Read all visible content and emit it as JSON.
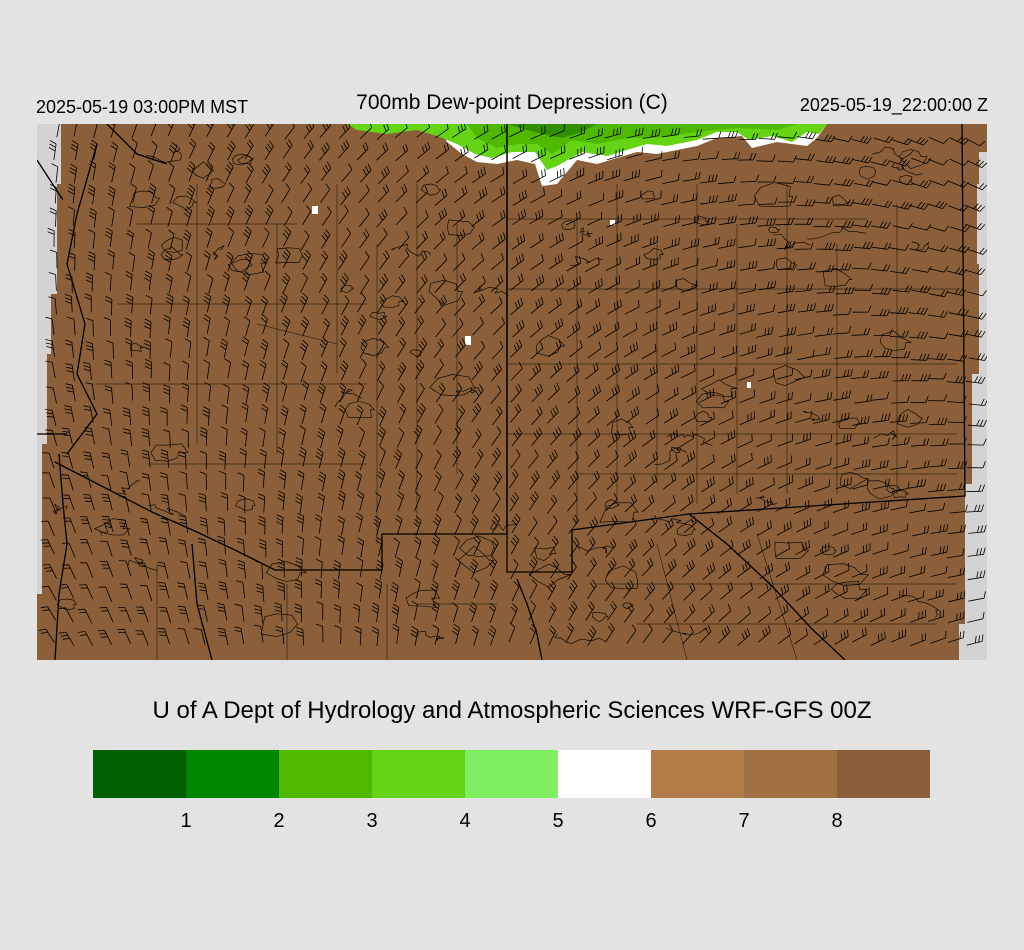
{
  "header": {
    "valid_local": "2025-05-19 03:00PM MST",
    "title": "700mb Dew-point Depression (C)",
    "valid_utc": "2025-05-19_22:00:00 Z"
  },
  "credit": "U of A Dept of Hydrology and Atmospheric Sciences WRF-GFS 00Z",
  "legend": {
    "colors": [
      "#005f00",
      "#008500",
      "#4fb900",
      "#65d415",
      "#7fee63",
      "#ffffff",
      "#b27c48",
      "#a06f42",
      "#8b5f39"
    ],
    "ticks": [
      "1",
      "2",
      "3",
      "4",
      "5",
      "6",
      "7",
      "8"
    ]
  },
  "map": {
    "dominant_fill": "#8b5f39",
    "moist_colors": [
      "#4fb900",
      "#65d415",
      "#7fee63",
      "#ffffff"
    ],
    "boundary_color": "#000000",
    "missing_color": "#d3d3d3",
    "feature": "700mb wind barbs and dew-point depression contours over the southwestern US"
  }
}
